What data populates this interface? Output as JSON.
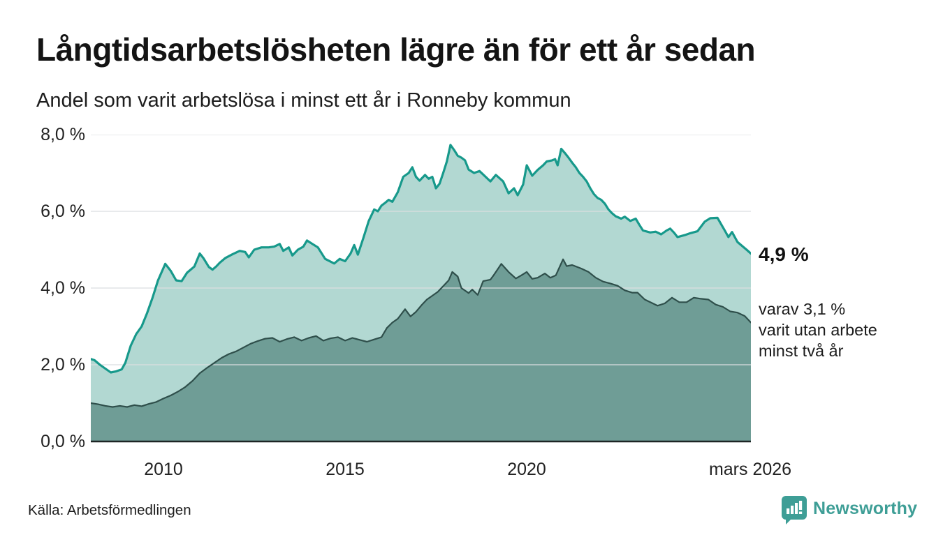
{
  "chart_data": {
    "type": "area",
    "title": "Långtidsarbetslösheten lägre än för ett år sedan",
    "subtitle": "Andel som varit arbetslösa i minst ett år i Ronneby kommun",
    "source": "Källa: Arbetsförmedlingen",
    "legend_position": "none",
    "x_axis": {
      "domain": [
        2008.0,
        2026.17
      ],
      "ticks": [
        {
          "label": "2010",
          "year": 2010
        },
        {
          "label": "2015",
          "year": 2015
        },
        {
          "label": "2020",
          "year": 2020
        },
        {
          "label": "mars 2026",
          "year": 2026.17
        }
      ]
    },
    "y_axis": {
      "range": [
        0,
        8
      ],
      "grid": true,
      "ticks": [
        {
          "label": "0,0 %",
          "value": 0
        },
        {
          "label": "2,0 %",
          "value": 2
        },
        {
          "label": "4,0 %",
          "value": 4
        },
        {
          "label": "6,0 %",
          "value": 6
        },
        {
          "label": "8,0 %",
          "value": 8
        }
      ]
    },
    "annotations": {
      "primary_value": "4,9 %",
      "secondary_lines": [
        "varav 3,1 %",
        "varit utan arbete",
        "minst två år"
      ]
    },
    "series": [
      {
        "name": "Andel som varit arbetslösa minst ett år",
        "line_color": "#17998b",
        "fill_color": "#b2d8d2",
        "line_width": 3.2,
        "end_value": 4.9,
        "points": [
          [
            2008.0,
            2.15
          ],
          [
            2008.1,
            2.12
          ],
          [
            2008.25,
            2.0
          ],
          [
            2008.4,
            1.9
          ],
          [
            2008.55,
            1.8
          ],
          [
            2008.7,
            1.83
          ],
          [
            2008.85,
            1.88
          ],
          [
            2008.95,
            2.05
          ],
          [
            2009.1,
            2.5
          ],
          [
            2009.25,
            2.8
          ],
          [
            2009.4,
            3.0
          ],
          [
            2009.55,
            3.35
          ],
          [
            2009.7,
            3.75
          ],
          [
            2009.85,
            4.2
          ],
          [
            2010.05,
            4.63
          ],
          [
            2010.2,
            4.45
          ],
          [
            2010.35,
            4.2
          ],
          [
            2010.5,
            4.18
          ],
          [
            2010.65,
            4.4
          ],
          [
            2010.85,
            4.56
          ],
          [
            2011.0,
            4.9
          ],
          [
            2011.1,
            4.78
          ],
          [
            2011.25,
            4.55
          ],
          [
            2011.35,
            4.48
          ],
          [
            2011.45,
            4.56
          ],
          [
            2011.55,
            4.66
          ],
          [
            2011.7,
            4.78
          ],
          [
            2011.9,
            4.88
          ],
          [
            2012.1,
            4.97
          ],
          [
            2012.25,
            4.94
          ],
          [
            2012.35,
            4.8
          ],
          [
            2012.5,
            5.0
          ],
          [
            2012.7,
            5.06
          ],
          [
            2012.9,
            5.06
          ],
          [
            2013.05,
            5.08
          ],
          [
            2013.2,
            5.15
          ],
          [
            2013.3,
            4.97
          ],
          [
            2013.45,
            5.06
          ],
          [
            2013.55,
            4.85
          ],
          [
            2013.7,
            5.0
          ],
          [
            2013.85,
            5.08
          ],
          [
            2013.95,
            5.24
          ],
          [
            2014.1,
            5.15
          ],
          [
            2014.25,
            5.06
          ],
          [
            2014.45,
            4.76
          ],
          [
            2014.7,
            4.64
          ],
          [
            2014.85,
            4.76
          ],
          [
            2015.0,
            4.7
          ],
          [
            2015.15,
            4.9
          ],
          [
            2015.25,
            5.12
          ],
          [
            2015.35,
            4.87
          ],
          [
            2015.5,
            5.3
          ],
          [
            2015.65,
            5.75
          ],
          [
            2015.8,
            6.05
          ],
          [
            2015.9,
            6.0
          ],
          [
            2016.0,
            6.15
          ],
          [
            2016.1,
            6.22
          ],
          [
            2016.2,
            6.3
          ],
          [
            2016.3,
            6.25
          ],
          [
            2016.45,
            6.5
          ],
          [
            2016.6,
            6.9
          ],
          [
            2016.75,
            7.0
          ],
          [
            2016.85,
            7.15
          ],
          [
            2016.95,
            6.9
          ],
          [
            2017.05,
            6.8
          ],
          [
            2017.2,
            6.95
          ],
          [
            2017.3,
            6.85
          ],
          [
            2017.4,
            6.9
          ],
          [
            2017.5,
            6.6
          ],
          [
            2017.6,
            6.72
          ],
          [
            2017.7,
            7.0
          ],
          [
            2017.8,
            7.3
          ],
          [
            2017.9,
            7.73
          ],
          [
            2018.0,
            7.6
          ],
          [
            2018.1,
            7.45
          ],
          [
            2018.2,
            7.4
          ],
          [
            2018.3,
            7.33
          ],
          [
            2018.4,
            7.09
          ],
          [
            2018.55,
            7.0
          ],
          [
            2018.7,
            7.05
          ],
          [
            2018.8,
            6.96
          ],
          [
            2019.0,
            6.78
          ],
          [
            2019.15,
            6.95
          ],
          [
            2019.35,
            6.78
          ],
          [
            2019.5,
            6.47
          ],
          [
            2019.65,
            6.6
          ],
          [
            2019.75,
            6.42
          ],
          [
            2019.9,
            6.7
          ],
          [
            2020.0,
            7.2
          ],
          [
            2020.15,
            6.93
          ],
          [
            2020.3,
            7.08
          ],
          [
            2020.45,
            7.2
          ],
          [
            2020.55,
            7.3
          ],
          [
            2020.7,
            7.33
          ],
          [
            2020.78,
            7.36
          ],
          [
            2020.85,
            7.2
          ],
          [
            2020.95,
            7.63
          ],
          [
            2021.05,
            7.52
          ],
          [
            2021.15,
            7.4
          ],
          [
            2021.25,
            7.27
          ],
          [
            2021.35,
            7.15
          ],
          [
            2021.45,
            7.0
          ],
          [
            2021.55,
            6.9
          ],
          [
            2021.65,
            6.78
          ],
          [
            2021.75,
            6.6
          ],
          [
            2021.85,
            6.45
          ],
          [
            2021.95,
            6.35
          ],
          [
            2022.05,
            6.3
          ],
          [
            2022.15,
            6.2
          ],
          [
            2022.25,
            6.05
          ],
          [
            2022.35,
            5.95
          ],
          [
            2022.45,
            5.87
          ],
          [
            2022.6,
            5.81
          ],
          [
            2022.7,
            5.86
          ],
          [
            2022.85,
            5.75
          ],
          [
            2023.0,
            5.81
          ],
          [
            2023.1,
            5.65
          ],
          [
            2023.2,
            5.5
          ],
          [
            2023.4,
            5.45
          ],
          [
            2023.55,
            5.47
          ],
          [
            2023.7,
            5.4
          ],
          [
            2023.85,
            5.5
          ],
          [
            2023.95,
            5.55
          ],
          [
            2024.05,
            5.45
          ],
          [
            2024.15,
            5.33
          ],
          [
            2024.35,
            5.38
          ],
          [
            2024.5,
            5.43
          ],
          [
            2024.7,
            5.48
          ],
          [
            2024.9,
            5.73
          ],
          [
            2025.05,
            5.82
          ],
          [
            2025.25,
            5.83
          ],
          [
            2025.45,
            5.5
          ],
          [
            2025.55,
            5.33
          ],
          [
            2025.65,
            5.46
          ],
          [
            2025.8,
            5.2
          ],
          [
            2025.95,
            5.08
          ],
          [
            2026.05,
            5.0
          ],
          [
            2026.17,
            4.9
          ]
        ]
      },
      {
        "name": "varav utan arbete minst två år",
        "line_color": "#2f4f4b",
        "fill_color": "#6f9d96",
        "line_width": 2.2,
        "end_value": 3.1,
        "points": [
          [
            2008.0,
            1.0
          ],
          [
            2008.2,
            0.97
          ],
          [
            2008.4,
            0.93
          ],
          [
            2008.6,
            0.9
          ],
          [
            2008.8,
            0.93
          ],
          [
            2009.0,
            0.9
          ],
          [
            2009.2,
            0.95
          ],
          [
            2009.4,
            0.92
          ],
          [
            2009.6,
            0.98
          ],
          [
            2009.8,
            1.03
          ],
          [
            2010.0,
            1.12
          ],
          [
            2010.2,
            1.2
          ],
          [
            2010.4,
            1.3
          ],
          [
            2010.6,
            1.42
          ],
          [
            2010.8,
            1.58
          ],
          [
            2011.0,
            1.78
          ],
          [
            2011.2,
            1.92
          ],
          [
            2011.4,
            2.05
          ],
          [
            2011.6,
            2.18
          ],
          [
            2011.8,
            2.28
          ],
          [
            2012.0,
            2.35
          ],
          [
            2012.2,
            2.45
          ],
          [
            2012.4,
            2.55
          ],
          [
            2012.6,
            2.62
          ],
          [
            2012.8,
            2.68
          ],
          [
            2013.0,
            2.7
          ],
          [
            2013.2,
            2.6
          ],
          [
            2013.4,
            2.67
          ],
          [
            2013.6,
            2.72
          ],
          [
            2013.8,
            2.63
          ],
          [
            2014.0,
            2.7
          ],
          [
            2014.2,
            2.75
          ],
          [
            2014.4,
            2.63
          ],
          [
            2014.6,
            2.69
          ],
          [
            2014.8,
            2.72
          ],
          [
            2015.0,
            2.63
          ],
          [
            2015.2,
            2.7
          ],
          [
            2015.4,
            2.65
          ],
          [
            2015.6,
            2.6
          ],
          [
            2015.8,
            2.66
          ],
          [
            2016.0,
            2.72
          ],
          [
            2016.15,
            2.96
          ],
          [
            2016.3,
            3.1
          ],
          [
            2016.45,
            3.2
          ],
          [
            2016.65,
            3.45
          ],
          [
            2016.8,
            3.26
          ],
          [
            2016.95,
            3.38
          ],
          [
            2017.1,
            3.55
          ],
          [
            2017.25,
            3.7
          ],
          [
            2017.4,
            3.8
          ],
          [
            2017.55,
            3.9
          ],
          [
            2017.7,
            4.05
          ],
          [
            2017.85,
            4.2
          ],
          [
            2017.95,
            4.42
          ],
          [
            2018.1,
            4.3
          ],
          [
            2018.2,
            4.0
          ],
          [
            2018.4,
            3.87
          ],
          [
            2018.5,
            3.96
          ],
          [
            2018.65,
            3.82
          ],
          [
            2018.8,
            4.18
          ],
          [
            2019.0,
            4.22
          ],
          [
            2019.1,
            4.35
          ],
          [
            2019.3,
            4.63
          ],
          [
            2019.5,
            4.42
          ],
          [
            2019.7,
            4.25
          ],
          [
            2019.85,
            4.33
          ],
          [
            2020.0,
            4.42
          ],
          [
            2020.15,
            4.24
          ],
          [
            2020.3,
            4.27
          ],
          [
            2020.5,
            4.38
          ],
          [
            2020.65,
            4.27
          ],
          [
            2020.8,
            4.33
          ],
          [
            2021.0,
            4.75
          ],
          [
            2021.1,
            4.57
          ],
          [
            2021.25,
            4.6
          ],
          [
            2021.5,
            4.51
          ],
          [
            2021.7,
            4.42
          ],
          [
            2021.9,
            4.27
          ],
          [
            2022.1,
            4.17
          ],
          [
            2022.3,
            4.12
          ],
          [
            2022.5,
            4.06
          ],
          [
            2022.7,
            3.94
          ],
          [
            2022.9,
            3.88
          ],
          [
            2023.05,
            3.88
          ],
          [
            2023.25,
            3.7
          ],
          [
            2023.4,
            3.63
          ],
          [
            2023.6,
            3.54
          ],
          [
            2023.8,
            3.6
          ],
          [
            2024.0,
            3.75
          ],
          [
            2024.2,
            3.63
          ],
          [
            2024.4,
            3.63
          ],
          [
            2024.6,
            3.75
          ],
          [
            2024.8,
            3.72
          ],
          [
            2025.0,
            3.7
          ],
          [
            2025.2,
            3.57
          ],
          [
            2025.4,
            3.51
          ],
          [
            2025.6,
            3.39
          ],
          [
            2025.8,
            3.36
          ],
          [
            2026.0,
            3.27
          ],
          [
            2026.17,
            3.1
          ]
        ]
      }
    ],
    "grid_color": "#dbdde0",
    "baseline_color": "#1d2524"
  },
  "footer": {
    "brand": "Newsworthy",
    "brand_color": "#3e9e96"
  }
}
